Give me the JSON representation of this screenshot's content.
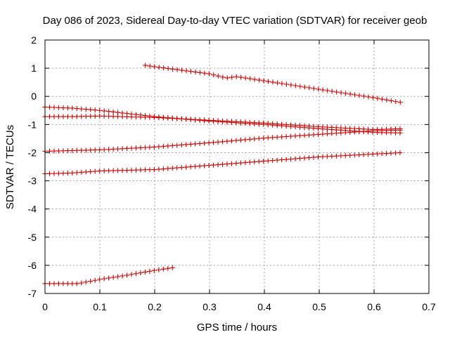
{
  "chart_data": {
    "type": "scatter",
    "title": "Day 086 of 2023, Sidereal Day-to-day VTEC variation (SDTVAR) for receiver geob",
    "xlabel": "GPS time / hours",
    "ylabel": "SDTVAR / TECUs",
    "xlim": [
      0,
      0.7
    ],
    "ylim": [
      -7,
      2
    ],
    "xticks": [
      0,
      0.1,
      0.2,
      0.3,
      0.4,
      0.5,
      0.6,
      0.7
    ],
    "xtick_labels": [
      "0",
      "0.1",
      "0.2",
      "0.3",
      "0.4",
      "0.5",
      "0.6",
      "0.7"
    ],
    "yticks": [
      -7,
      -6,
      -5,
      -4,
      -3,
      -2,
      -1,
      0,
      1,
      2
    ],
    "ytick_labels": [
      "-7",
      "-6",
      "-5",
      "-4",
      "-3",
      "-2",
      "-1",
      "0",
      "1",
      "2"
    ],
    "grid": true,
    "marker": "plus",
    "color": "#cc0000",
    "series": [
      {
        "name": "track-1",
        "x_start": 0.183,
        "x_end": 0.65,
        "x_step": 0.0083,
        "x_anchor": [
          0.183,
          0.2,
          0.3,
          0.33,
          0.35,
          0.4,
          0.5,
          0.6,
          0.65
        ],
        "y_anchor": [
          1.1,
          1.05,
          0.8,
          0.65,
          0.7,
          0.55,
          0.25,
          -0.05,
          -0.22
        ]
      },
      {
        "name": "track-2",
        "x_start": 0.0,
        "x_end": 0.65,
        "x_step": 0.0083,
        "x_anchor": [
          0.0,
          0.05,
          0.1,
          0.2,
          0.3,
          0.4,
          0.5,
          0.6,
          0.65
        ],
        "y_anchor": [
          -0.38,
          -0.42,
          -0.5,
          -0.72,
          -0.88,
          -1.0,
          -1.15,
          -1.28,
          -1.3
        ]
      },
      {
        "name": "track-3",
        "x_start": 0.0,
        "x_end": 0.65,
        "x_step": 0.0083,
        "x_anchor": [
          0.0,
          0.05,
          0.1,
          0.2,
          0.3,
          0.4,
          0.5,
          0.6,
          0.65
        ],
        "y_anchor": [
          -0.72,
          -0.72,
          -0.7,
          -0.75,
          -0.85,
          -0.95,
          -1.08,
          -1.18,
          -1.15
        ]
      },
      {
        "name": "track-4",
        "x_start": 0.0,
        "x_end": 0.65,
        "x_step": 0.0083,
        "x_anchor": [
          0.0,
          0.1,
          0.2,
          0.3,
          0.4,
          0.5,
          0.6,
          0.65
        ],
        "y_anchor": [
          -1.95,
          -1.9,
          -1.8,
          -1.65,
          -1.48,
          -1.35,
          -1.22,
          -1.2
        ]
      },
      {
        "name": "track-5",
        "x_start": 0.0,
        "x_end": 0.65,
        "x_step": 0.0083,
        "x_anchor": [
          0.0,
          0.05,
          0.1,
          0.2,
          0.3,
          0.4,
          0.5,
          0.6,
          0.65
        ],
        "y_anchor": [
          -2.75,
          -2.72,
          -2.65,
          -2.6,
          -2.45,
          -2.3,
          -2.15,
          -2.05,
          -2.0
        ]
      },
      {
        "name": "track-6",
        "x_start": 0.0,
        "x_end": 0.235,
        "x_step": 0.0083,
        "x_anchor": [
          0.0,
          0.06,
          0.1,
          0.15,
          0.2,
          0.235
        ],
        "y_anchor": [
          -6.65,
          -6.65,
          -6.5,
          -6.35,
          -6.18,
          -6.08
        ]
      }
    ]
  }
}
